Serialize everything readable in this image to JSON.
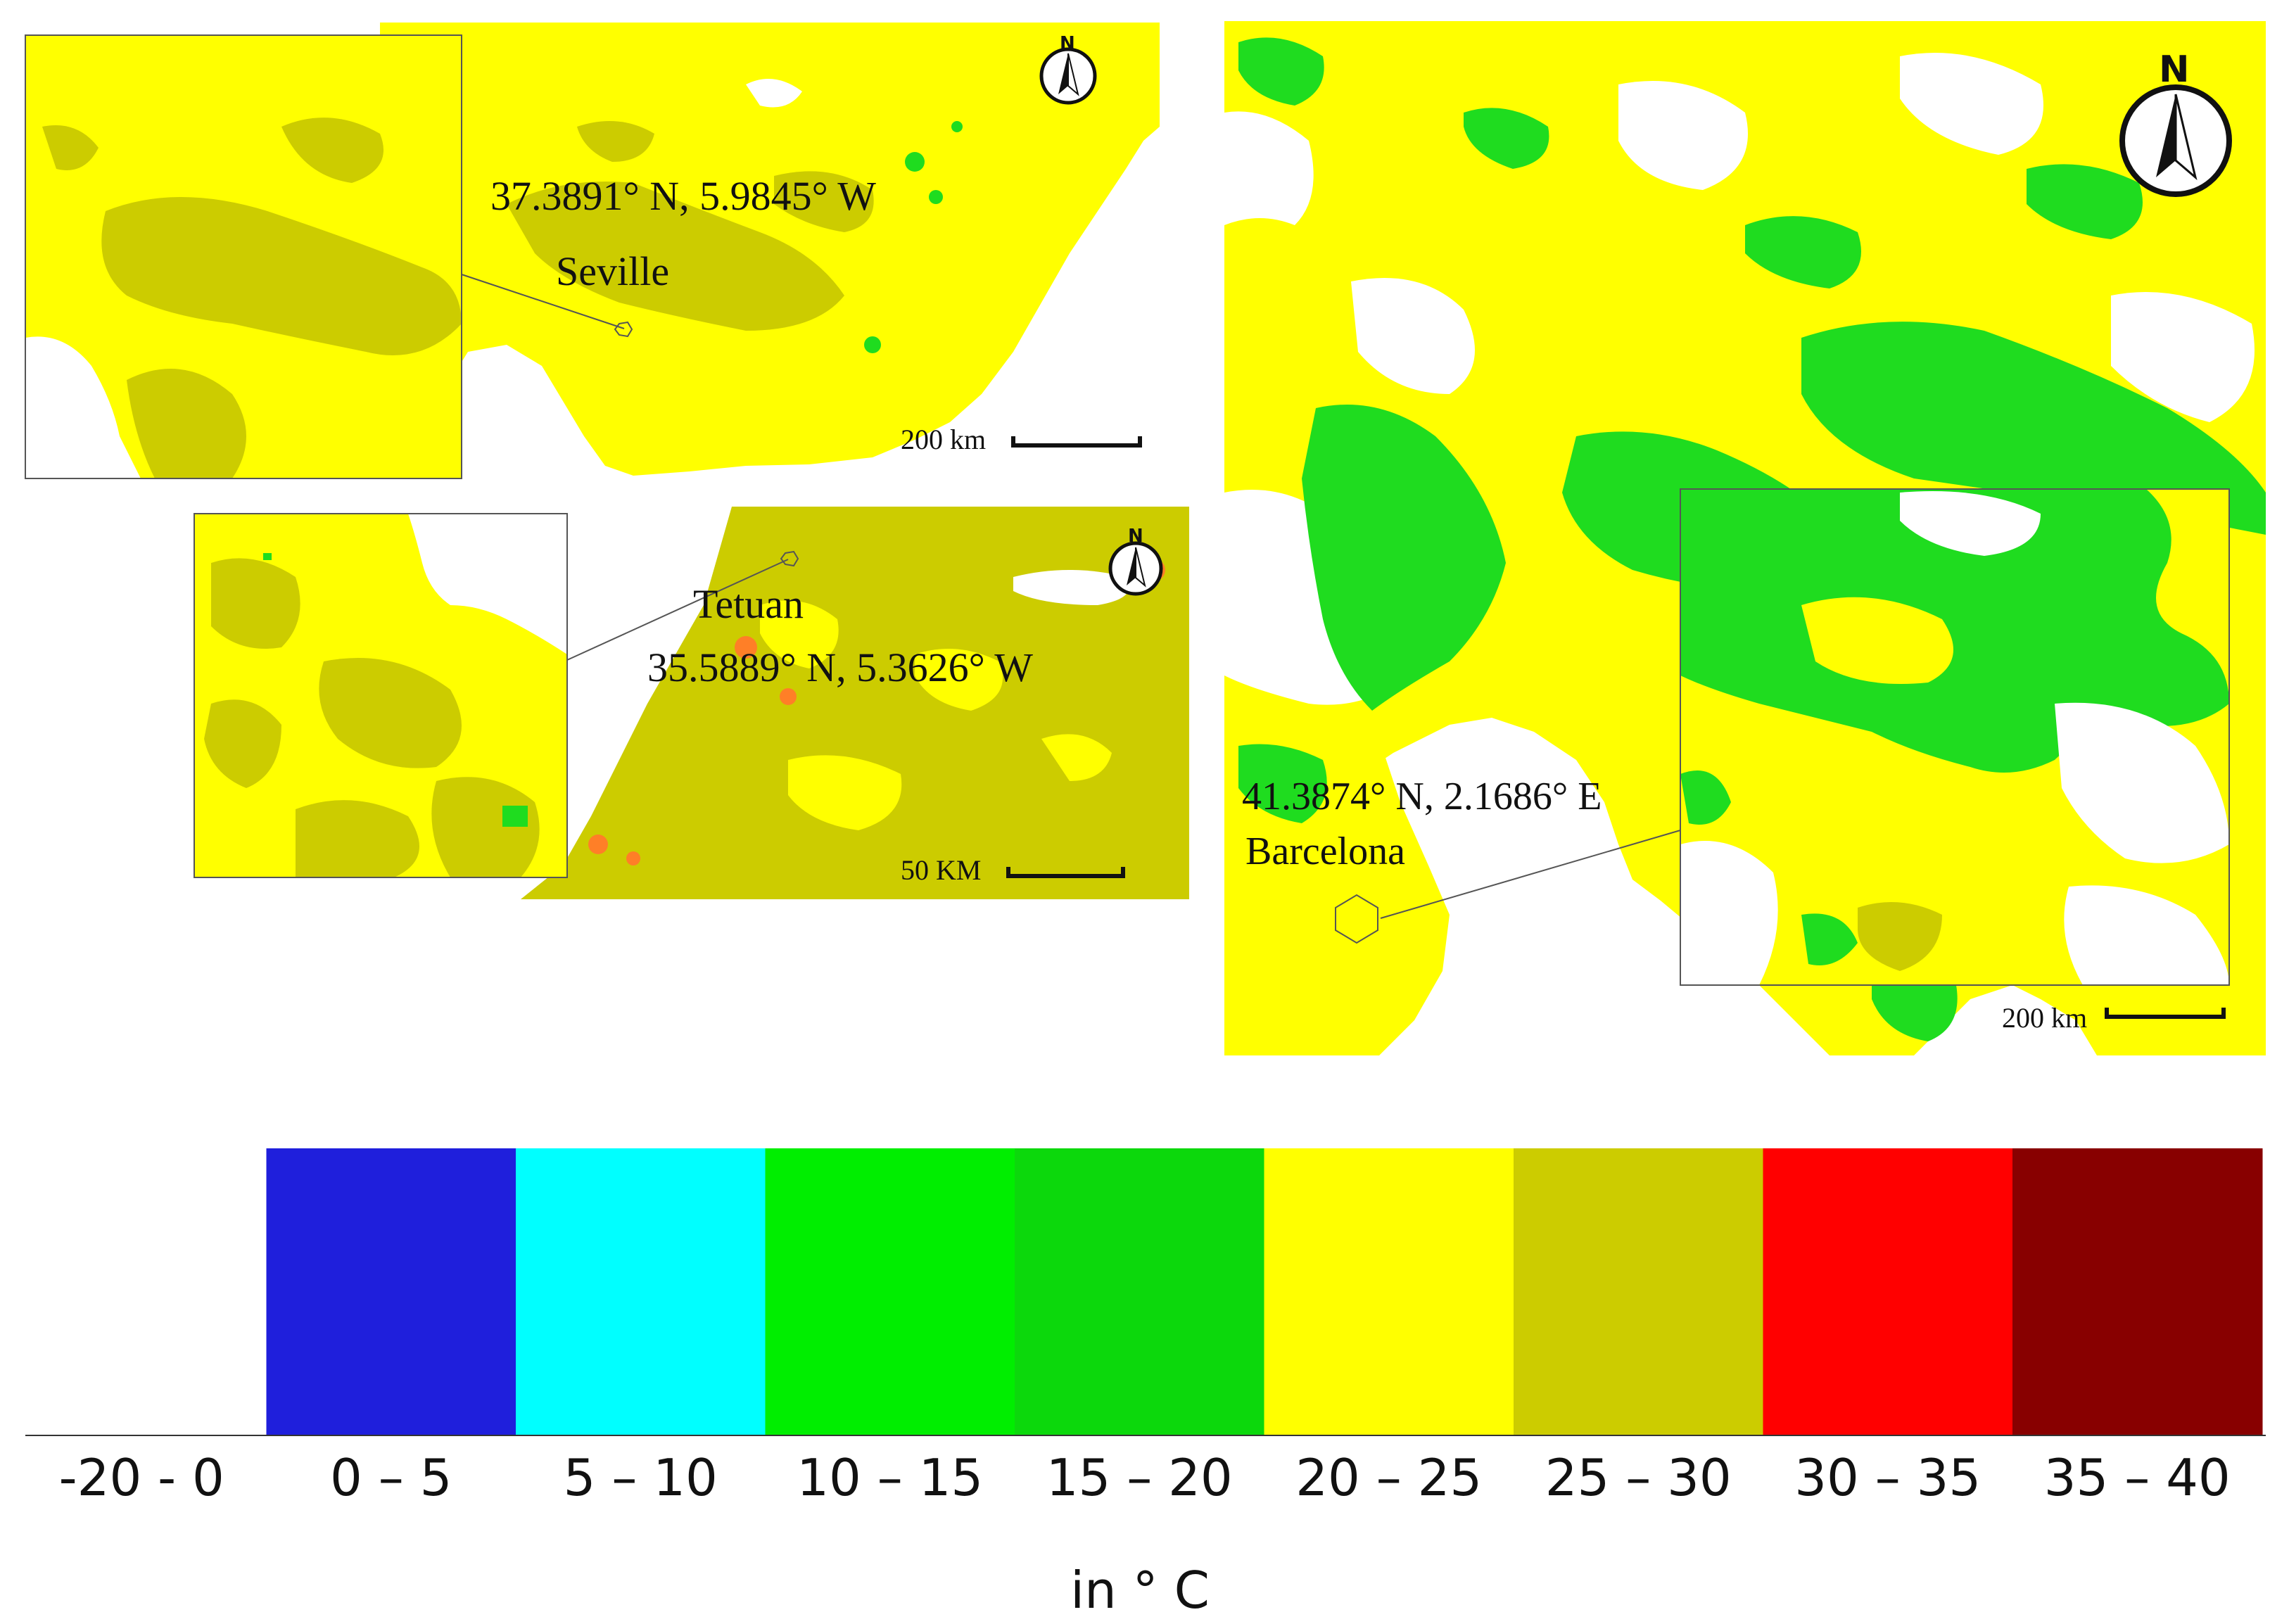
{
  "colors": {
    "yellow": "#ffff00",
    "olive": "#cccc00",
    "green": "#1fdc1f",
    "orange": "#ff7f27",
    "white": "#ffffff",
    "frame": "#555555"
  },
  "panels": {
    "seville": {
      "coords": "37.3891° N, 5.9845° W",
      "city": "Seville",
      "scale_label": "200 km",
      "north_label": "N"
    },
    "tetuan": {
      "city": "Tetuan",
      "coords": "35.5889° N, 5.3626° W",
      "scale_label": "50 KM",
      "north_label": "N"
    },
    "barcelona": {
      "coords": "41.3874° N, 2.1686° E",
      "city": "Barcelona",
      "scale_label": "200 km",
      "north_label": "N"
    }
  },
  "legend": {
    "classes": [
      {
        "label": "-20 - 0",
        "color": "#ffffff"
      },
      {
        "label": "0 – 5",
        "color": "#1f1fdc"
      },
      {
        "label": "5 – 10",
        "color": "#00ffff"
      },
      {
        "label": "10 – 15",
        "color": "#00ee00"
      },
      {
        "label": "15 – 20",
        "color": "#0cd80c"
      },
      {
        "label": "20 – 25",
        "color": "#ffff00"
      },
      {
        "label": "25 – 30",
        "color": "#cccc00"
      },
      {
        "label": "30 – 35",
        "color": "#ff0000"
      },
      {
        "label": "35 – 40",
        "color": "#880000"
      }
    ],
    "unit": "in ° C"
  }
}
